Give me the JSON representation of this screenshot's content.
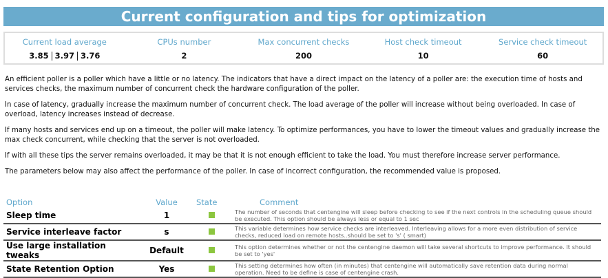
{
  "title": "Current configuration and tips for optimization",
  "stats": {
    "load_label": "Current load average",
    "load": [
      "3.85",
      "3.97",
      "3.76"
    ],
    "cpus_label": "CPUs number",
    "cpus": "2",
    "max_label": "Max concurrent checks",
    "max": "200",
    "host_label": "Host check timeout",
    "host": "10",
    "service_label": "Service check timeout",
    "service": "60"
  },
  "tips": [
    "An efficient poller is a poller which have a little or no latency. The indicators that have a direct impact on the latency of a poller are: the execution time of hosts and services checks, the maximum number of concurrent check the hardware configuration of the poller.",
    "In case of latency, gradually increase the maximum number of concurrent check. The load average of the poller will increase without being overloaded. In case of overload, latency increases instead of decrease.",
    "If many hosts and services end up on a timeout, the poller will make latency. To optimize performances, you have to lower the timeout values and gradually increase the max check concurrent, while checking that the server is not overloaded.",
    "If with all these tips the server remains overloaded, it may be that it is not enough efficient to take the load. You must therefore increase server performance.",
    "The parameters below may also affect the performance of the poller. In case of incorrect configuration, the recommended value is proposed."
  ],
  "table": {
    "headers": [
      "Option",
      "Value",
      "State",
      "Comment"
    ],
    "state_color": "#8cc63f",
    "rows": [
      {
        "option": "Sleep time",
        "value": "1",
        "state": "ok",
        "comment": "The number of seconds that centengine will sleep before checking to see if the next controls in the scheduling queue should be executed. This option should be always less or equal to 1 sec"
      },
      {
        "option": "Service interleave factor",
        "value": "s",
        "state": "ok",
        "comment": "This variable determines how service checks are interleaved. Interleaving allows for a more even distribution of service checks, reduced load on remote hosts..should be set to 's' ( smart)"
      },
      {
        "option": "Use large installation tweaks",
        "value": "Default",
        "state": "ok",
        "comment": "This option determines whether or not the centengine daemon will take several shortcuts to improve performance. It should be set to 'yes'"
      },
      {
        "option": "State Retention Option",
        "value": "Yes",
        "state": "ok",
        "comment": "This setting determines how often (in minutes) that centengine will automatically save retention data during normal operation. Need to be define is case of centengine crash."
      }
    ]
  }
}
